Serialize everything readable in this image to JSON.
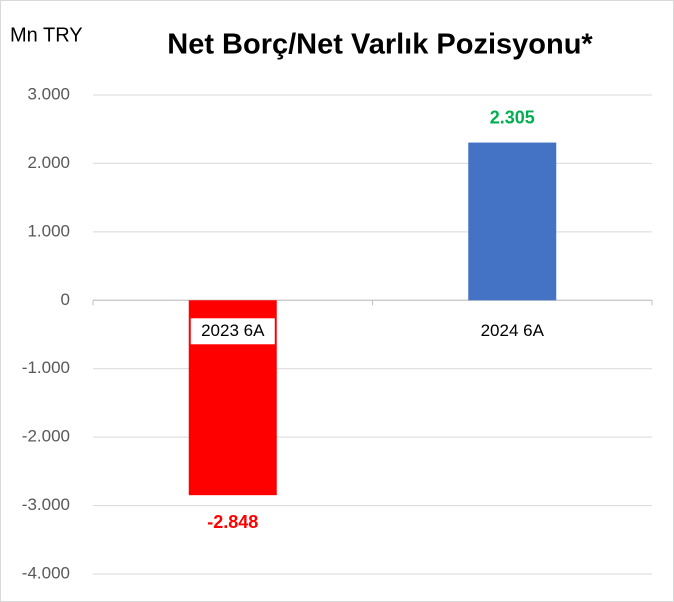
{
  "chart_data": {
    "type": "bar",
    "title": "Net Borç/Net Varlık Pozisyonu*",
    "y_label": "Mn TRY",
    "categories": [
      "2023 6A",
      "2024 6A"
    ],
    "values": [
      -2848,
      2305
    ],
    "value_labels": [
      "-2.848",
      "2.305"
    ],
    "colors": [
      "#ff0000",
      "#4472c4"
    ],
    "value_label_colors": [
      "#ff0000",
      "#00b050"
    ],
    "ylim": [
      -4000,
      3000
    ],
    "yticks": [
      {
        "value": -4000,
        "label": "-4.000"
      },
      {
        "value": -3000,
        "label": "-3.000"
      },
      {
        "value": -2000,
        "label": "-2.000"
      },
      {
        "value": -1000,
        "label": "-1.000"
      },
      0,
      {
        "value": 1000,
        "label": "1.000"
      },
      {
        "value": 2000,
        "label": "2.000"
      },
      {
        "value": 3000,
        "label": "3.000"
      }
    ],
    "grid": true
  }
}
